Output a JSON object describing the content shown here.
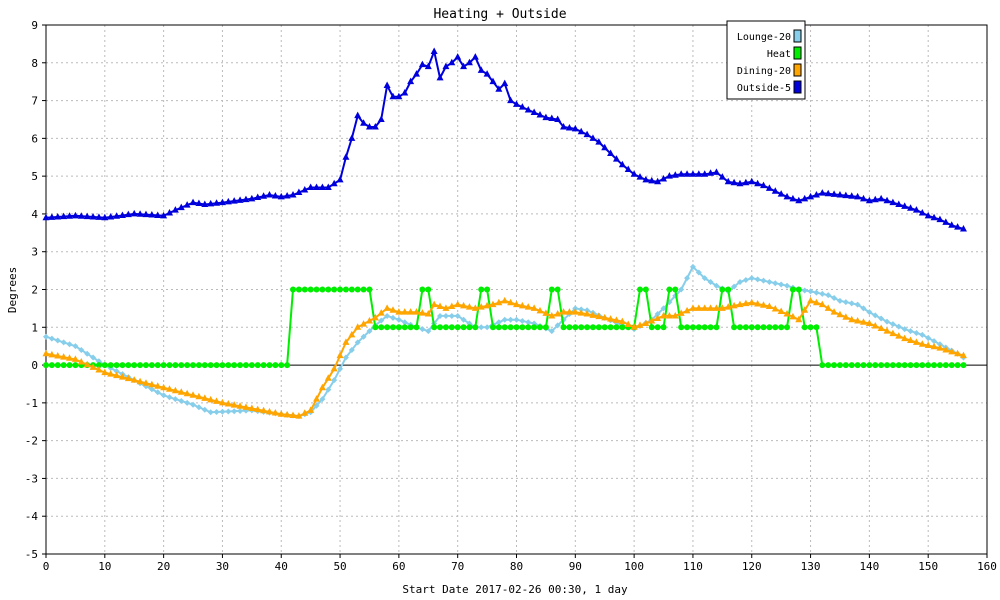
{
  "chart_data": {
    "type": "line",
    "title": "Heating + Outside",
    "xlabel": "Start Date 2017-02-26 00:30, 1 day",
    "ylabel": "Degrees",
    "xlim": [
      0,
      160
    ],
    "ylim": [
      -5,
      9
    ],
    "xticks": [
      "0",
      "10",
      "20",
      "30",
      "40",
      "50",
      "60",
      "70",
      "80",
      "90",
      "100",
      "110",
      "120",
      "130",
      "140",
      "150",
      "160"
    ],
    "yticks": [
      "-5",
      "-4",
      "-3",
      "-2",
      "-1",
      "0",
      "1",
      "2",
      "3",
      "4",
      "5",
      "6",
      "7",
      "8",
      "9"
    ],
    "grid": true,
    "legend_position": "top-right",
    "series": [
      {
        "name": "Lounge-20",
        "color": "#87ceeb",
        "marker": "diamond",
        "points": [
          [
            0,
            0.75
          ],
          [
            5,
            0.5
          ],
          [
            10,
            0
          ],
          [
            15,
            -0.4
          ],
          [
            20,
            -0.8
          ],
          [
            25,
            -1.05
          ],
          [
            28,
            -1.25
          ],
          [
            35,
            -1.2
          ],
          [
            40,
            -1.3
          ],
          [
            43,
            -1.35
          ],
          [
            45,
            -1.25
          ],
          [
            47,
            -0.9
          ],
          [
            49,
            -0.4
          ],
          [
            51,
            0.2
          ],
          [
            53,
            0.6
          ],
          [
            56,
            1.05
          ],
          [
            58,
            1.3
          ],
          [
            60,
            1.2
          ],
          [
            63,
            1.0
          ],
          [
            65,
            0.9
          ],
          [
            67,
            1.3
          ],
          [
            70,
            1.3
          ],
          [
            73,
            1.0
          ],
          [
            75,
            1.0
          ],
          [
            78,
            1.2
          ],
          [
            80,
            1.2
          ],
          [
            83,
            1.1
          ],
          [
            86,
            0.9
          ],
          [
            88,
            1.2
          ],
          [
            90,
            1.5
          ],
          [
            92,
            1.45
          ],
          [
            95,
            1.25
          ],
          [
            98,
            1.05
          ],
          [
            100,
            0.95
          ],
          [
            103,
            1.2
          ],
          [
            105,
            1.5
          ],
          [
            108,
            2.0
          ],
          [
            110,
            2.6
          ],
          [
            112,
            2.3
          ],
          [
            114,
            2.1
          ],
          [
            116,
            1.95
          ],
          [
            118,
            2.2
          ],
          [
            120,
            2.3
          ],
          [
            123,
            2.2
          ],
          [
            126,
            2.1
          ],
          [
            128,
            2.0
          ],
          [
            130,
            1.95
          ],
          [
            133,
            1.85
          ],
          [
            135,
            1.7
          ],
          [
            138,
            1.6
          ],
          [
            140,
            1.4
          ],
          [
            143,
            1.15
          ],
          [
            146,
            0.95
          ],
          [
            149,
            0.8
          ],
          [
            152,
            0.55
          ],
          [
            155,
            0.3
          ],
          [
            156,
            0.2
          ]
        ]
      },
      {
        "name": "Heat",
        "color": "#00ee00",
        "marker": "circle",
        "points": [
          [
            0,
            0
          ],
          [
            41,
            0
          ],
          [
            42,
            2
          ],
          [
            55,
            2
          ],
          [
            56,
            1
          ],
          [
            63,
            1
          ],
          [
            64,
            2
          ],
          [
            65,
            2
          ],
          [
            66,
            1
          ],
          [
            73,
            1
          ],
          [
            74,
            2
          ],
          [
            75,
            2
          ],
          [
            76,
            1
          ],
          [
            85,
            1
          ],
          [
            86,
            2
          ],
          [
            87,
            2
          ],
          [
            88,
            1
          ],
          [
            100,
            1
          ],
          [
            101,
            2
          ],
          [
            102,
            2
          ],
          [
            103,
            1
          ],
          [
            105,
            1
          ],
          [
            106,
            2
          ],
          [
            107,
            2
          ],
          [
            108,
            1
          ],
          [
            114,
            1
          ],
          [
            115,
            2
          ],
          [
            116,
            2
          ],
          [
            117,
            1
          ],
          [
            126,
            1
          ],
          [
            127,
            2
          ],
          [
            128,
            2
          ],
          [
            129,
            1
          ],
          [
            131,
            1
          ],
          [
            132,
            0
          ],
          [
            156,
            0
          ]
        ]
      },
      {
        "name": "Dining-20",
        "color": "#ffa500",
        "marker": "triangle",
        "points": [
          [
            0,
            0.3
          ],
          [
            5,
            0.15
          ],
          [
            10,
            -0.2
          ],
          [
            15,
            -0.4
          ],
          [
            20,
            -0.6
          ],
          [
            25,
            -0.8
          ],
          [
            30,
            -1.0
          ],
          [
            35,
            -1.15
          ],
          [
            40,
            -1.3
          ],
          [
            43,
            -1.35
          ],
          [
            45,
            -1.2
          ],
          [
            47,
            -0.6
          ],
          [
            49,
            -0.1
          ],
          [
            51,
            0.6
          ],
          [
            53,
            1.0
          ],
          [
            56,
            1.25
          ],
          [
            58,
            1.5
          ],
          [
            60,
            1.4
          ],
          [
            63,
            1.4
          ],
          [
            65,
            1.35
          ],
          [
            66,
            1.6
          ],
          [
            68,
            1.5
          ],
          [
            70,
            1.6
          ],
          [
            73,
            1.5
          ],
          [
            76,
            1.6
          ],
          [
            78,
            1.7
          ],
          [
            80,
            1.6
          ],
          [
            83,
            1.5
          ],
          [
            86,
            1.3
          ],
          [
            88,
            1.4
          ],
          [
            90,
            1.4
          ],
          [
            92,
            1.35
          ],
          [
            95,
            1.25
          ],
          [
            98,
            1.15
          ],
          [
            100,
            1.0
          ],
          [
            102,
            1.1
          ],
          [
            105,
            1.3
          ],
          [
            107,
            1.3
          ],
          [
            110,
            1.5
          ],
          [
            112,
            1.5
          ],
          [
            115,
            1.5
          ],
          [
            118,
            1.6
          ],
          [
            120,
            1.65
          ],
          [
            123,
            1.55
          ],
          [
            126,
            1.35
          ],
          [
            128,
            1.2
          ],
          [
            130,
            1.7
          ],
          [
            132,
            1.6
          ],
          [
            134,
            1.4
          ],
          [
            137,
            1.2
          ],
          [
            140,
            1.1
          ],
          [
            143,
            0.9
          ],
          [
            146,
            0.7
          ],
          [
            149,
            0.55
          ],
          [
            152,
            0.45
          ],
          [
            155,
            0.3
          ],
          [
            156,
            0.25
          ]
        ]
      },
      {
        "name": "Outside-5",
        "color": "#0000dd",
        "marker": "triangle",
        "points": [
          [
            0,
            3.9
          ],
          [
            5,
            3.95
          ],
          [
            10,
            3.9
          ],
          [
            15,
            4.0
          ],
          [
            20,
            3.95
          ],
          [
            22,
            4.1
          ],
          [
            25,
            4.3
          ],
          [
            27,
            4.25
          ],
          [
            30,
            4.3
          ],
          [
            35,
            4.4
          ],
          [
            38,
            4.5
          ],
          [
            40,
            4.45
          ],
          [
            42,
            4.5
          ],
          [
            45,
            4.7
          ],
          [
            48,
            4.7
          ],
          [
            50,
            4.9
          ],
          [
            51,
            5.5
          ],
          [
            52,
            6.0
          ],
          [
            53,
            6.6
          ],
          [
            54,
            6.4
          ],
          [
            55,
            6.3
          ],
          [
            56,
            6.3
          ],
          [
            57,
            6.5
          ],
          [
            58,
            7.4
          ],
          [
            59,
            7.1
          ],
          [
            60,
            7.1
          ],
          [
            61,
            7.2
          ],
          [
            62,
            7.5
          ],
          [
            63,
            7.7
          ],
          [
            64,
            7.95
          ],
          [
            65,
            7.9
          ],
          [
            66,
            8.3
          ],
          [
            67,
            7.6
          ],
          [
            68,
            7.9
          ],
          [
            69,
            8.0
          ],
          [
            70,
            8.15
          ],
          [
            71,
            7.9
          ],
          [
            72,
            8.0
          ],
          [
            73,
            8.15
          ],
          [
            74,
            7.8
          ],
          [
            75,
            7.7
          ],
          [
            77,
            7.3
          ],
          [
            78,
            7.45
          ],
          [
            79,
            7.0
          ],
          [
            80,
            6.9
          ],
          [
            82,
            6.75
          ],
          [
            85,
            6.55
          ],
          [
            87,
            6.5
          ],
          [
            88,
            6.3
          ],
          [
            90,
            6.25
          ],
          [
            92,
            6.1
          ],
          [
            94,
            5.9
          ],
          [
            96,
            5.6
          ],
          [
            98,
            5.3
          ],
          [
            100,
            5.05
          ],
          [
            102,
            4.9
          ],
          [
            104,
            4.85
          ],
          [
            106,
            5.0
          ],
          [
            108,
            5.05
          ],
          [
            110,
            5.05
          ],
          [
            112,
            5.05
          ],
          [
            114,
            5.1
          ],
          [
            116,
            4.85
          ],
          [
            118,
            4.8
          ],
          [
            120,
            4.85
          ],
          [
            122,
            4.75
          ],
          [
            124,
            4.6
          ],
          [
            126,
            4.45
          ],
          [
            128,
            4.35
          ],
          [
            130,
            4.45
          ],
          [
            132,
            4.55
          ],
          [
            135,
            4.5
          ],
          [
            138,
            4.45
          ],
          [
            140,
            4.35
          ],
          [
            142,
            4.4
          ],
          [
            144,
            4.3
          ],
          [
            146,
            4.2
          ],
          [
            148,
            4.1
          ],
          [
            150,
            3.95
          ],
          [
            152,
            3.85
          ],
          [
            154,
            3.7
          ],
          [
            156,
            3.6
          ]
        ]
      }
    ]
  }
}
